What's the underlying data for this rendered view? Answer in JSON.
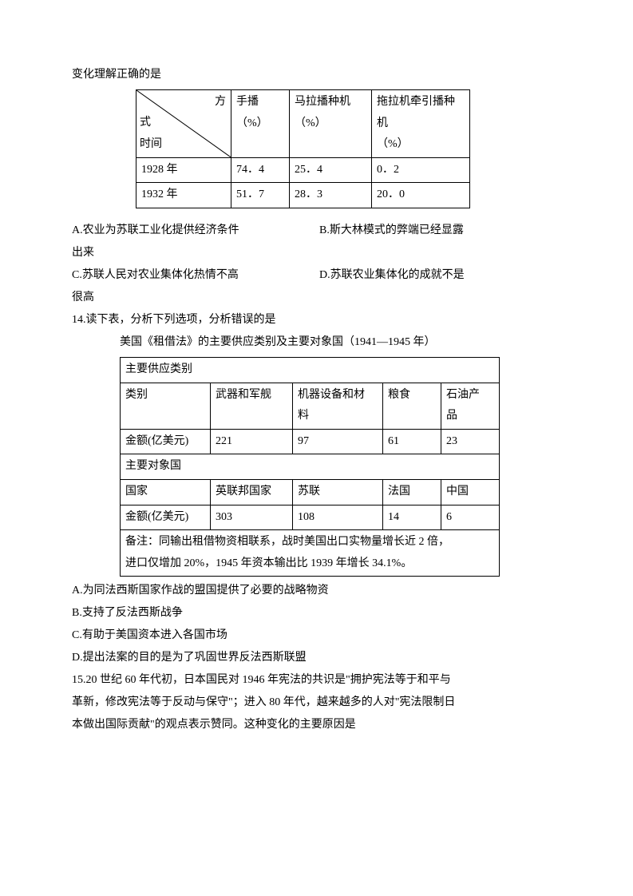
{
  "q13": {
    "intro": "变化理解正确的是",
    "table": {
      "diag": {
        "topRight": "方",
        "midLeft": "式",
        "botLeft": "时间"
      },
      "headers": [
        "手播\n（%）",
        "马拉播种机\n（%）",
        "拖拉机牵引播种\n机\n（%）"
      ],
      "rows": [
        {
          "year": "1928 年",
          "v": [
            "74．4",
            "25．4",
            "0．2"
          ]
        },
        {
          "year": "1932 年",
          "v": [
            "51．7",
            "28．3",
            "20．0"
          ]
        }
      ]
    },
    "opts": {
      "A": "A.农业为苏联工业化提供经济条件",
      "B": "B.斯大林模式的弊端已经显露",
      "Bcont": "出来",
      "C": "C.苏联人民对农业集体化热情不高",
      "D": "D.苏联农业集体化的成就不是",
      "Dcont": "很高"
    }
  },
  "q14": {
    "stem": "14.读下表，分析下列选项，分析错误的是",
    "caption": "美国《租借法》的主要供应类别及主要对象国（1941―1945 年）",
    "table": {
      "sec1": "主要供应类别",
      "row1h": [
        "类别",
        "武器和军舰",
        "机器设备和材\n料",
        "粮食",
        "石油产\n品"
      ],
      "row1v": [
        "金额(亿美元)",
        "221",
        "97",
        "61",
        "23"
      ],
      "sec2": "主要对象国",
      "row2h": [
        "国家",
        "英联邦国家",
        "苏联",
        "法国",
        "中国"
      ],
      "row2v": [
        "金额(亿美元)",
        "303",
        "108",
        "14",
        "6"
      ],
      "note": "备注：同输出租借物资相联系，战时美国出口实物量增长近 2 倍，\n进口仅增加 20%，1945 年资本输出比 1939 年增长 34.1%。"
    },
    "opts": {
      "A": "A.为同法西斯国家作战的盟国提供了必要的战略物资",
      "B": "B.支持了反法西斯战争",
      "C": "C.有助于美国资本进入各国市场",
      "D": "D.提出法案的目的是为了巩固世界反法西斯联盟"
    }
  },
  "q15": {
    "l1": "15.20 世纪 60 年代初，日本国民对 1946 年宪法的共识是\"拥护宪法等于和平与",
    "l2": "革新，修改宪法等于反动与保守\"；进入 80 年代，越来越多的人对\"宪法限制日",
    "l3": "本做出国际贡献\"的观点表示赞同。这种变化的主要原因是"
  }
}
